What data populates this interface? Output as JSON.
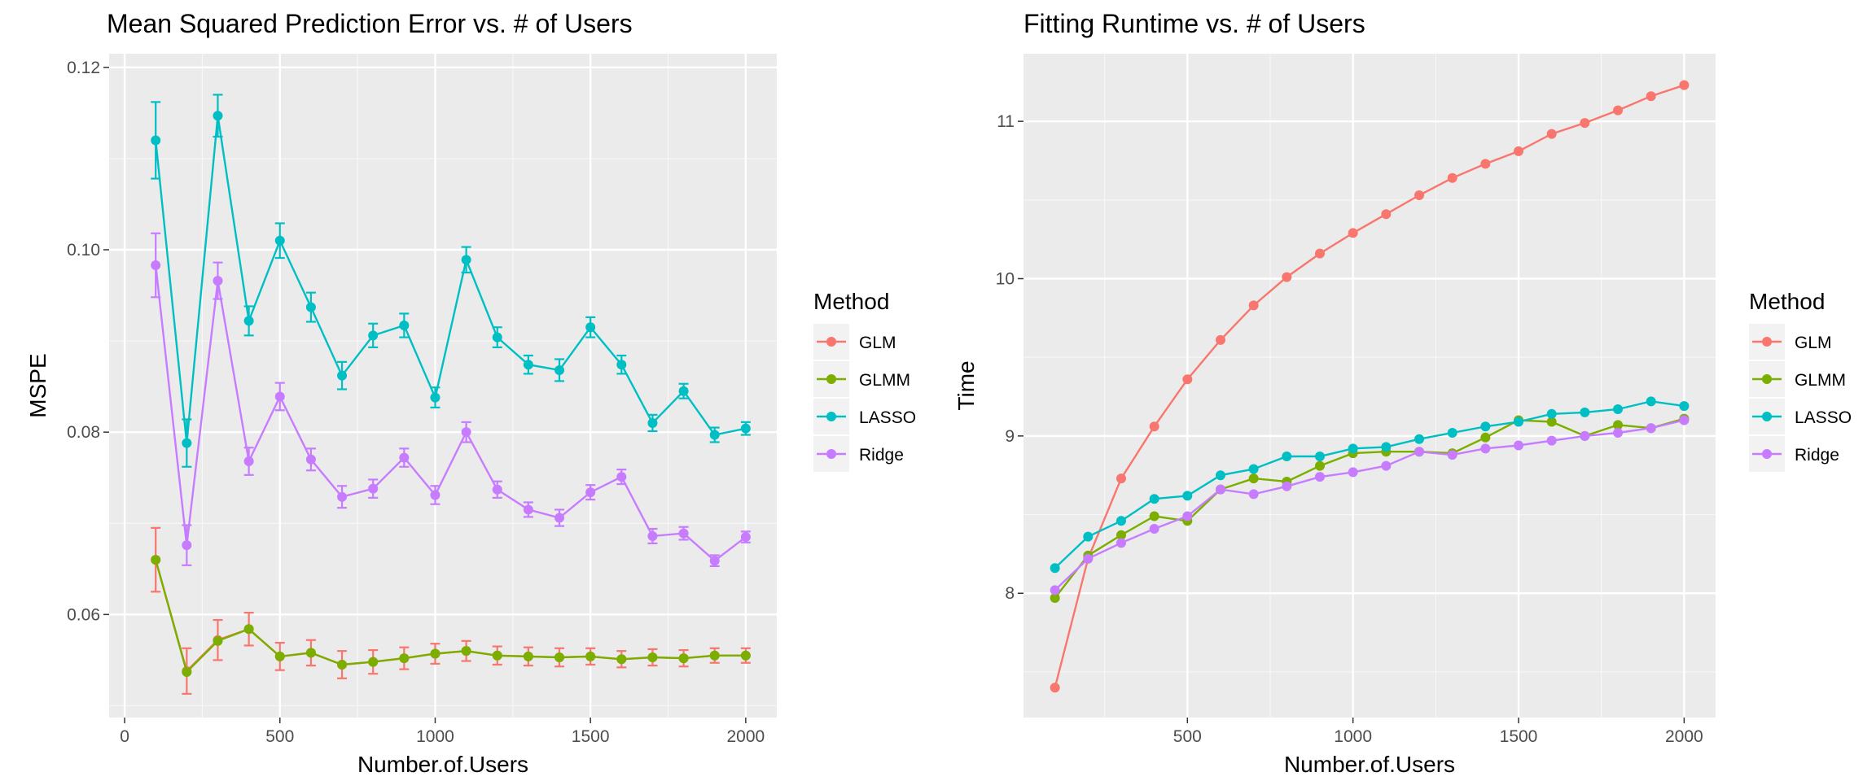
{
  "chart_data": [
    {
      "type": "line",
      "title": "Mean Squared Prediction Error vs. # of Users",
      "xlabel": "Number.of.Users",
      "ylabel": "MSPE",
      "xlim": [
        -50,
        2100
      ],
      "ylim": [
        0.0487,
        0.1215
      ],
      "xticks": [
        0,
        500,
        1000,
        1500,
        2000
      ],
      "xtick_labels": [
        "0",
        "500",
        "1000",
        "1500",
        "2000"
      ],
      "yticks": [
        0.06,
        0.08,
        0.1,
        0.12
      ],
      "ytick_labels": [
        "0.06",
        "0.08",
        "0.10",
        "0.12"
      ],
      "grid": true,
      "error_bars": true,
      "legend": {
        "title": "Method",
        "position": "right"
      },
      "x": [
        100,
        200,
        300,
        400,
        500,
        600,
        700,
        800,
        900,
        1000,
        1100,
        1200,
        1300,
        1400,
        1500,
        1600,
        1700,
        1800,
        1900,
        2000
      ],
      "series": [
        {
          "name": "GLM",
          "color": "#F8766D",
          "values": [
            0.066,
            0.0538,
            0.0572,
            0.0584,
            0.0554,
            0.0558,
            0.0545,
            0.0548,
            0.0552,
            0.0557,
            0.056,
            0.0555,
            0.0554,
            0.0553,
            0.0554,
            0.0551,
            0.0553,
            0.0552,
            0.0555,
            0.0555
          ],
          "errors": [
            0.0035,
            0.0025,
            0.0022,
            0.0018,
            0.0015,
            0.0014,
            0.0015,
            0.0013,
            0.0012,
            0.0011,
            0.0011,
            0.001,
            0.001,
            0.001,
            0.0009,
            0.0009,
            0.0009,
            0.0009,
            0.0008,
            0.0008
          ]
        },
        {
          "name": "GLMM",
          "color": "#7CAE00",
          "values": [
            0.066,
            0.0537,
            0.0571,
            0.0584,
            0.0554,
            0.0558,
            0.0545,
            0.0548,
            0.0552,
            0.0557,
            0.056,
            0.0555,
            0.0554,
            0.0553,
            0.0554,
            0.0551,
            0.0553,
            0.0552,
            0.0555,
            0.0555
          ],
          "errors": []
        },
        {
          "name": "LASSO",
          "color": "#00BFC4",
          "values": [
            0.112,
            0.0788,
            0.1147,
            0.0922,
            0.101,
            0.0937,
            0.0862,
            0.0906,
            0.0917,
            0.0838,
            0.0989,
            0.0904,
            0.0874,
            0.0868,
            0.0915,
            0.0874,
            0.081,
            0.0845,
            0.0797,
            0.0804
          ],
          "errors": [
            0.0042,
            0.0026,
            0.0023,
            0.0016,
            0.0019,
            0.0016,
            0.0015,
            0.0013,
            0.0013,
            0.0011,
            0.0014,
            0.0011,
            0.001,
            0.0012,
            0.0011,
            0.001,
            0.0009,
            0.0008,
            0.0008,
            0.0007
          ]
        },
        {
          "name": "Ridge",
          "color": "#C77CFF",
          "values": [
            0.0983,
            0.0676,
            0.0966,
            0.0768,
            0.0839,
            0.077,
            0.0729,
            0.0738,
            0.0772,
            0.0731,
            0.08,
            0.0737,
            0.0715,
            0.0706,
            0.0734,
            0.0751,
            0.0686,
            0.0689,
            0.0659,
            0.0685
          ],
          "errors": [
            0.0035,
            0.0022,
            0.002,
            0.0015,
            0.0015,
            0.0012,
            0.0012,
            0.001,
            0.001,
            0.001,
            0.0011,
            0.0009,
            0.0008,
            0.0009,
            0.0008,
            0.0008,
            0.0008,
            0.0007,
            0.0006,
            0.0006
          ]
        }
      ]
    },
    {
      "type": "line",
      "title": "Fitting Runtime vs. # of Users",
      "xlabel": "Number.of.Users",
      "ylabel": "Time",
      "xlim": [
        5,
        2095
      ],
      "ylim": [
        7.21,
        11.43
      ],
      "xticks": [
        500,
        1000,
        1500,
        2000
      ],
      "xtick_labels": [
        "500",
        "1000",
        "1500",
        "2000"
      ],
      "yticks": [
        8,
        9,
        10,
        11
      ],
      "ytick_labels": [
        "8",
        "9",
        "10",
        "11"
      ],
      "grid": true,
      "legend": {
        "title": "Method",
        "position": "right"
      },
      "x": [
        100,
        200,
        300,
        400,
        500,
        600,
        700,
        800,
        900,
        1000,
        1100,
        1200,
        1300,
        1400,
        1500,
        1600,
        1700,
        1800,
        1900,
        2000
      ],
      "series": [
        {
          "name": "GLM",
          "color": "#F8766D",
          "values": [
            7.4,
            8.22,
            8.73,
            9.06,
            9.36,
            9.61,
            9.83,
            10.01,
            10.16,
            10.29,
            10.41,
            10.53,
            10.64,
            10.73,
            10.81,
            10.92,
            10.99,
            11.07,
            11.16,
            11.23
          ]
        },
        {
          "name": "GLMM",
          "color": "#7CAE00",
          "values": [
            7.97,
            8.24,
            8.37,
            8.49,
            8.46,
            8.66,
            8.73,
            8.71,
            8.81,
            8.89,
            8.9,
            8.9,
            8.89,
            8.99,
            9.1,
            9.09,
            9.0,
            9.07,
            9.05,
            9.11
          ]
        },
        {
          "name": "LASSO",
          "color": "#00BFC4",
          "values": [
            8.16,
            8.36,
            8.46,
            8.6,
            8.62,
            8.75,
            8.79,
            8.87,
            8.87,
            8.92,
            8.93,
            8.98,
            9.02,
            9.06,
            9.09,
            9.14,
            9.15,
            9.17,
            9.22,
            9.19
          ]
        },
        {
          "name": "Ridge",
          "color": "#C77CFF",
          "values": [
            8.02,
            8.22,
            8.32,
            8.41,
            8.49,
            8.66,
            8.63,
            8.68,
            8.74,
            8.77,
            8.81,
            8.9,
            8.88,
            8.92,
            8.94,
            8.97,
            9.0,
            9.02,
            9.05,
            9.1
          ]
        }
      ]
    }
  ]
}
